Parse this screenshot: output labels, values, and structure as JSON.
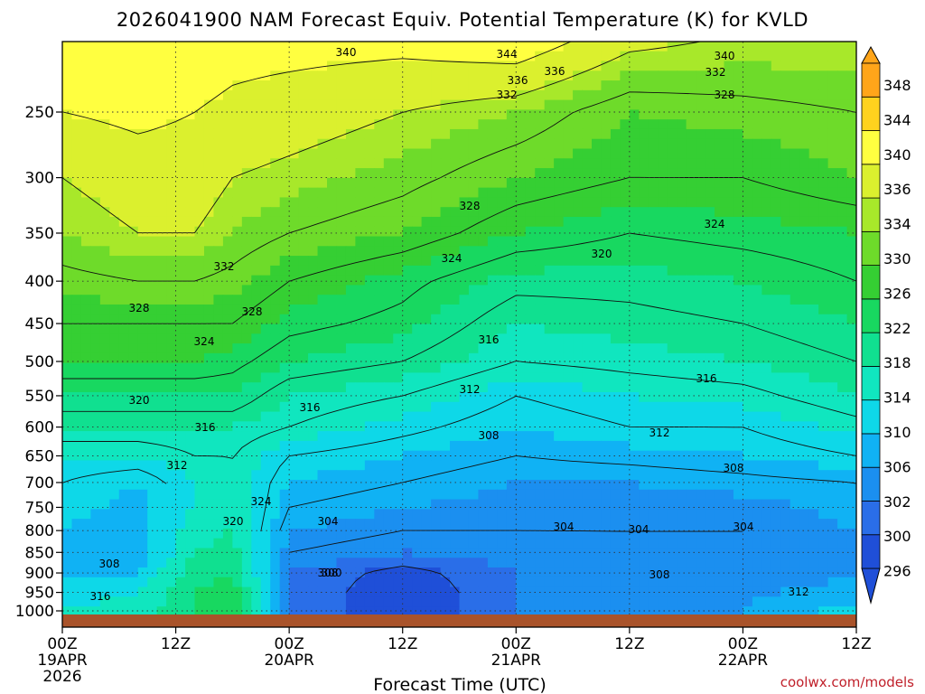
{
  "chart_data": {
    "type": "heatmap",
    "title": "2026041900 NAM Forecast Equiv. Potential Temperature (K) for KVLD",
    "xlabel": "Forecast Time (UTC)",
    "ylabel": "",
    "credit": "coolwx.com/models",
    "x_ticks": [
      {
        "hours": 0,
        "top": "00Z",
        "mid": "19APR",
        "bot": "2026"
      },
      {
        "hours": 12,
        "top": "12Z",
        "mid": "",
        "bot": ""
      },
      {
        "hours": 24,
        "top": "00Z",
        "mid": "20APR",
        "bot": ""
      },
      {
        "hours": 36,
        "top": "12Z",
        "mid": "",
        "bot": ""
      },
      {
        "hours": 48,
        "top": "00Z",
        "mid": "21APR",
        "bot": ""
      },
      {
        "hours": 60,
        "top": "12Z",
        "mid": "",
        "bot": ""
      },
      {
        "hours": 72,
        "top": "00Z",
        "mid": "22APR",
        "bot": ""
      },
      {
        "hours": 84,
        "top": "12Z",
        "mid": "",
        "bot": ""
      }
    ],
    "xlim_hours": [
      0,
      84
    ],
    "y_ticks_hpa": [
      250,
      300,
      350,
      400,
      450,
      500,
      550,
      600,
      650,
      700,
      750,
      800,
      850,
      900,
      950,
      1000
    ],
    "ylim_hpa": [
      200,
      1015
    ],
    "y_scale": "log-pressure",
    "grid": "dotted",
    "colorbar": {
      "ticks": [
        348,
        344,
        340,
        336,
        334,
        330,
        326,
        322,
        318,
        314,
        310,
        306,
        302,
        300,
        296
      ],
      "bounds": [
        296,
        300,
        302,
        306,
        310,
        314,
        318,
        322,
        326,
        330,
        334,
        336,
        340,
        344,
        348
      ],
      "colors": [
        "#1f4fd8",
        "#2a6ee8",
        "#1b8ff0",
        "#10b2f4",
        "#0ed8e8",
        "#10e6bf",
        "#10e090",
        "#18d860",
        "#35cf33",
        "#6edb2a",
        "#a8e82a",
        "#dbf02e",
        "#ffff40",
        "#ffd21e",
        "#ffa51a"
      ]
    },
    "theta_e_profile": {
      "levels_hpa": [
        1000,
        950,
        900,
        850,
        800,
        750,
        700,
        650,
        600,
        550,
        500,
        450,
        400,
        350,
        300,
        250,
        200
      ],
      "columns": [
        {
          "hours": 0,
          "values": [
            314,
            312,
            310,
            310,
            310,
            311,
            312,
            314,
            318,
            322,
            326,
            328,
            331,
            334,
            336,
            340,
            344
          ]
        },
        {
          "hours": 8,
          "values": [
            316,
            314,
            310,
            308,
            308,
            309,
            310,
            314,
            318,
            322,
            326,
            328,
            332,
            336,
            338,
            341,
            344
          ]
        },
        {
          "hours": 14,
          "values": [
            322,
            322,
            320,
            318,
            316,
            314,
            314,
            316,
            318,
            322,
            326,
            328,
            332,
            336,
            338,
            340,
            343
          ]
        },
        {
          "hours": 18,
          "values": [
            324,
            324,
            322,
            320,
            318,
            318,
            316,
            316,
            318,
            322,
            325,
            328,
            331,
            334,
            336,
            339,
            342
          ]
        },
        {
          "hours": 24,
          "values": [
            302,
            302,
            302,
            304,
            306,
            308,
            310,
            312,
            316,
            318,
            322,
            325,
            328,
            332,
            335,
            338,
            342
          ]
        },
        {
          "hours": 36,
          "values": [
            298,
            298,
            299,
            302,
            304,
            306,
            308,
            310,
            313,
            316,
            320,
            323,
            325,
            330,
            333,
            336,
            342
          ]
        },
        {
          "hours": 48,
          "values": [
            302,
            302,
            302,
            303,
            304,
            305,
            306,
            308,
            310,
            312,
            316,
            318,
            321,
            326,
            330,
            334,
            344
          ]
        },
        {
          "hours": 60,
          "values": [
            304,
            304,
            304,
            304,
            304,
            305,
            306,
            309,
            312,
            314,
            317,
            319,
            321,
            324,
            328,
            330,
            338
          ]
        },
        {
          "hours": 72,
          "values": [
            306,
            305,
            304,
            304,
            304,
            305,
            307,
            310,
            312,
            315,
            318,
            320,
            322,
            325,
            328,
            331,
            336
          ]
        },
        {
          "hours": 84,
          "values": [
            312,
            308,
            305,
            306,
            306,
            307,
            308,
            312,
            315,
            318,
            320,
            322,
            324,
            326,
            330,
            332,
            336
          ]
        }
      ]
    },
    "contour_labels": [
      "340",
      "344",
      "336",
      "340",
      "336",
      "332",
      "332",
      "328",
      "328",
      "324",
      "324",
      "332",
      "320",
      "328",
      "328",
      "324",
      "316",
      "316",
      "320",
      "312",
      "316",
      "316",
      "312",
      "308",
      "312",
      "308",
      "308",
      "304",
      "324",
      "320",
      "304",
      "304",
      "304",
      "308",
      "308",
      "300",
      "316",
      "312"
    ]
  }
}
